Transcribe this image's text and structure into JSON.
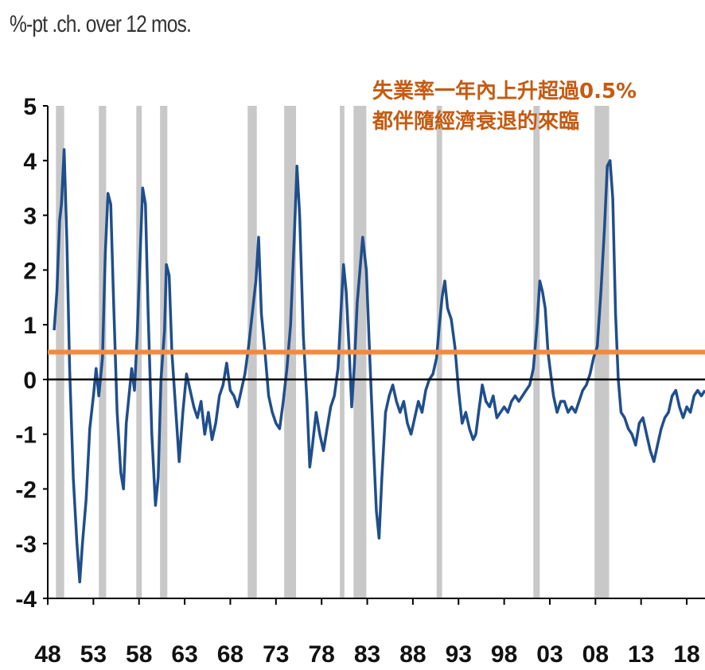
{
  "chart_data": {
    "type": "line",
    "ylabel": "%-pt .ch. over 12 mos.",
    "annotation": [
      "失業率一年內上升超過0.5%",
      "都伴隨經濟衰退的來臨"
    ],
    "xlim": [
      1948,
      2020
    ],
    "ylim": [
      -4,
      5
    ],
    "x_ticks": [
      "48",
      "53",
      "58",
      "63",
      "68",
      "73",
      "78",
      "83",
      "88",
      "93",
      "98",
      "03",
      "08",
      "13",
      "18"
    ],
    "y_ticks": [
      "5",
      "4",
      "3",
      "2",
      "1",
      "0",
      "-1",
      "-2",
      "-3",
      "-4"
    ],
    "threshold": 0.5,
    "recessions": [
      [
        1948.9,
        1949.8
      ],
      [
        1953.6,
        1954.4
      ],
      [
        1957.7,
        1958.3
      ],
      [
        1960.3,
        1961.1
      ],
      [
        1969.9,
        1970.9
      ],
      [
        1973.9,
        1975.2
      ],
      [
        1980.0,
        1980.5
      ],
      [
        1981.5,
        1982.9
      ],
      [
        1990.6,
        1991.2
      ],
      [
        2001.2,
        2001.9
      ],
      [
        2007.9,
        2009.5
      ]
    ],
    "series": [
      {
        "color": "#1f4e8c",
        "points": [
          [
            1948.7,
            0.9
          ],
          [
            1949.0,
            1.6
          ],
          [
            1949.3,
            2.9
          ],
          [
            1949.5,
            3.2
          ],
          [
            1949.8,
            4.2
          ],
          [
            1950.1,
            2.5
          ],
          [
            1950.4,
            0.2
          ],
          [
            1950.8,
            -1.8
          ],
          [
            1951.2,
            -3.0
          ],
          [
            1951.5,
            -3.7
          ],
          [
            1951.8,
            -3.0
          ],
          [
            1952.2,
            -2.2
          ],
          [
            1952.6,
            -0.9
          ],
          [
            1953.0,
            -0.3
          ],
          [
            1953.3,
            0.2
          ],
          [
            1953.6,
            -0.3
          ],
          [
            1954.0,
            0.4
          ],
          [
            1954.3,
            2.3
          ],
          [
            1954.6,
            3.4
          ],
          [
            1954.9,
            3.2
          ],
          [
            1955.2,
            1.5
          ],
          [
            1955.6,
            -0.6
          ],
          [
            1956.0,
            -1.7
          ],
          [
            1956.3,
            -2.0
          ],
          [
            1956.6,
            -0.8
          ],
          [
            1956.9,
            -0.3
          ],
          [
            1957.2,
            0.2
          ],
          [
            1957.5,
            -0.2
          ],
          [
            1957.8,
            0.8
          ],
          [
            1958.1,
            2.2
          ],
          [
            1958.4,
            3.5
          ],
          [
            1958.7,
            3.2
          ],
          [
            1959.0,
            1.2
          ],
          [
            1959.4,
            -1.0
          ],
          [
            1959.8,
            -2.3
          ],
          [
            1960.1,
            -1.8
          ],
          [
            1960.4,
            0.0
          ],
          [
            1960.8,
            0.9
          ],
          [
            1961.0,
            2.1
          ],
          [
            1961.3,
            1.9
          ],
          [
            1961.6,
            0.5
          ],
          [
            1962.0,
            -0.5
          ],
          [
            1962.4,
            -1.5
          ],
          [
            1962.8,
            -0.6
          ],
          [
            1963.2,
            0.1
          ],
          [
            1963.6,
            -0.2
          ],
          [
            1964.0,
            -0.5
          ],
          [
            1964.4,
            -0.7
          ],
          [
            1964.8,
            -0.4
          ],
          [
            1965.2,
            -1.0
          ],
          [
            1965.6,
            -0.6
          ],
          [
            1966.0,
            -1.1
          ],
          [
            1966.4,
            -0.8
          ],
          [
            1966.8,
            -0.3
          ],
          [
            1967.2,
            -0.1
          ],
          [
            1967.6,
            0.3
          ],
          [
            1968.0,
            -0.2
          ],
          [
            1968.4,
            -0.3
          ],
          [
            1968.8,
            -0.5
          ],
          [
            1969.2,
            -0.2
          ],
          [
            1969.6,
            0.1
          ],
          [
            1970.0,
            0.6
          ],
          [
            1970.4,
            1.2
          ],
          [
            1970.8,
            1.8
          ],
          [
            1971.1,
            2.6
          ],
          [
            1971.4,
            1.2
          ],
          [
            1971.8,
            0.5
          ],
          [
            1972.2,
            -0.3
          ],
          [
            1972.6,
            -0.6
          ],
          [
            1973.0,
            -0.8
          ],
          [
            1973.4,
            -0.9
          ],
          [
            1973.8,
            -0.4
          ],
          [
            1974.2,
            0.2
          ],
          [
            1974.6,
            1.0
          ],
          [
            1975.0,
            2.6
          ],
          [
            1975.3,
            3.9
          ],
          [
            1975.6,
            3.0
          ],
          [
            1976.0,
            0.8
          ],
          [
            1976.4,
            -0.4
          ],
          [
            1976.7,
            -1.6
          ],
          [
            1977.0,
            -1.2
          ],
          [
            1977.4,
            -0.6
          ],
          [
            1977.8,
            -1.0
          ],
          [
            1978.2,
            -1.3
          ],
          [
            1978.6,
            -0.9
          ],
          [
            1979.0,
            -0.5
          ],
          [
            1979.4,
            -0.3
          ],
          [
            1979.8,
            0.2
          ],
          [
            1980.1,
            1.2
          ],
          [
            1980.4,
            2.1
          ],
          [
            1980.7,
            1.6
          ],
          [
            1981.0,
            0.6
          ],
          [
            1981.3,
            -0.5
          ],
          [
            1981.6,
            0.3
          ],
          [
            1981.9,
            1.4
          ],
          [
            1982.2,
            2.0
          ],
          [
            1982.5,
            2.6
          ],
          [
            1982.9,
            2.0
          ],
          [
            1983.3,
            0.3
          ],
          [
            1983.7,
            -1.3
          ],
          [
            1984.0,
            -2.4
          ],
          [
            1984.3,
            -2.9
          ],
          [
            1984.6,
            -1.8
          ],
          [
            1985.0,
            -0.6
          ],
          [
            1985.4,
            -0.3
          ],
          [
            1985.8,
            -0.1
          ],
          [
            1986.2,
            -0.4
          ],
          [
            1986.6,
            -0.6
          ],
          [
            1987.0,
            -0.4
          ],
          [
            1987.4,
            -0.8
          ],
          [
            1987.8,
            -1.0
          ],
          [
            1988.2,
            -0.7
          ],
          [
            1988.6,
            -0.4
          ],
          [
            1989.0,
            -0.6
          ],
          [
            1989.4,
            -0.2
          ],
          [
            1989.8,
            0.0
          ],
          [
            1990.2,
            0.1
          ],
          [
            1990.6,
            0.4
          ],
          [
            1990.9,
            1.0
          ],
          [
            1991.2,
            1.5
          ],
          [
            1991.5,
            1.8
          ],
          [
            1991.8,
            1.3
          ],
          [
            1992.2,
            1.1
          ],
          [
            1992.6,
            0.6
          ],
          [
            1993.0,
            -0.2
          ],
          [
            1993.4,
            -0.8
          ],
          [
            1993.8,
            -0.6
          ],
          [
            1994.2,
            -0.9
          ],
          [
            1994.6,
            -1.1
          ],
          [
            1994.9,
            -1.0
          ],
          [
            1995.2,
            -0.6
          ],
          [
            1995.6,
            -0.1
          ],
          [
            1996.0,
            -0.4
          ],
          [
            1996.4,
            -0.5
          ],
          [
            1996.8,
            -0.3
          ],
          [
            1997.2,
            -0.7
          ],
          [
            1997.6,
            -0.6
          ],
          [
            1998.0,
            -0.5
          ],
          [
            1998.4,
            -0.6
          ],
          [
            1998.8,
            -0.4
          ],
          [
            1999.2,
            -0.3
          ],
          [
            1999.6,
            -0.4
          ],
          [
            2000.0,
            -0.3
          ],
          [
            2000.4,
            -0.2
          ],
          [
            2000.8,
            -0.1
          ],
          [
            2001.2,
            0.2
          ],
          [
            2001.6,
            1.0
          ],
          [
            2001.9,
            1.8
          ],
          [
            2002.2,
            1.6
          ],
          [
            2002.5,
            1.3
          ],
          [
            2002.8,
            0.5
          ],
          [
            2003.1,
            0.1
          ],
          [
            2003.4,
            -0.3
          ],
          [
            2003.8,
            -0.6
          ],
          [
            2004.2,
            -0.4
          ],
          [
            2004.6,
            -0.4
          ],
          [
            2005.0,
            -0.6
          ],
          [
            2005.4,
            -0.5
          ],
          [
            2005.8,
            -0.6
          ],
          [
            2006.2,
            -0.4
          ],
          [
            2006.6,
            -0.2
          ],
          [
            2007.0,
            -0.1
          ],
          [
            2007.4,
            0.1
          ],
          [
            2007.8,
            0.4
          ],
          [
            2008.2,
            0.6
          ],
          [
            2008.6,
            1.6
          ],
          [
            2009.0,
            2.8
          ],
          [
            2009.3,
            3.9
          ],
          [
            2009.6,
            4.0
          ],
          [
            2009.9,
            3.3
          ],
          [
            2010.2,
            1.2
          ],
          [
            2010.5,
            0.0
          ],
          [
            2010.8,
            -0.6
          ],
          [
            2011.2,
            -0.7
          ],
          [
            2011.6,
            -0.9
          ],
          [
            2012.0,
            -1.0
          ],
          [
            2012.4,
            -1.2
          ],
          [
            2012.8,
            -0.8
          ],
          [
            2013.2,
            -0.7
          ],
          [
            2013.6,
            -1.0
          ],
          [
            2014.0,
            -1.3
          ],
          [
            2014.4,
            -1.5
          ],
          [
            2014.8,
            -1.2
          ],
          [
            2015.2,
            -0.9
          ],
          [
            2015.6,
            -0.7
          ],
          [
            2016.0,
            -0.6
          ],
          [
            2016.4,
            -0.3
          ],
          [
            2016.8,
            -0.2
          ],
          [
            2017.2,
            -0.5
          ],
          [
            2017.6,
            -0.7
          ],
          [
            2018.0,
            -0.5
          ],
          [
            2018.4,
            -0.6
          ],
          [
            2018.8,
            -0.3
          ],
          [
            2019.2,
            -0.2
          ],
          [
            2019.6,
            -0.3
          ],
          [
            2020.0,
            -0.2
          ]
        ]
      }
    ],
    "colors": {
      "line": "#1f4e8c",
      "threshold": "#f58a3c",
      "recession": "#c8c8c8",
      "zero": "#000000"
    }
  }
}
